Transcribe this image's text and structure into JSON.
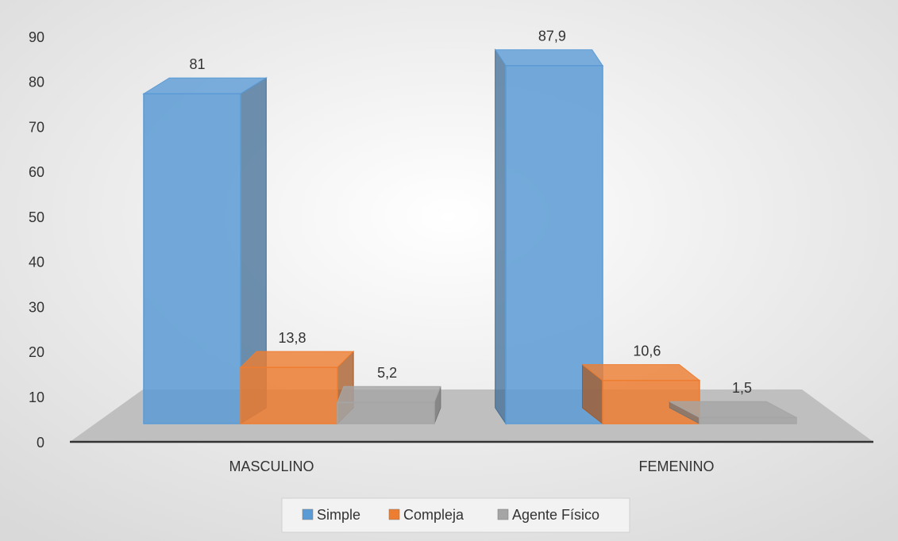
{
  "chart_data": {
    "type": "bar3d",
    "categories": [
      "MASCULINO",
      "FEMENINO"
    ],
    "series": [
      {
        "name": "Simple",
        "color": "#5b9bd5",
        "values": [
          81,
          87.9
        ],
        "value_labels": [
          "81",
          "87,9"
        ]
      },
      {
        "name": "Compleja",
        "color": "#ed7d31",
        "values": [
          13.8,
          10.6
        ],
        "value_labels": [
          "13,8",
          "10,6"
        ]
      },
      {
        "name": "Agente Físico",
        "color": "#a5a5a5",
        "values": [
          5.2,
          1.5
        ],
        "value_labels": [
          "5,2",
          "1,5"
        ]
      }
    ],
    "ylim": [
      0,
      90
    ],
    "yticks": [
      0,
      10,
      20,
      30,
      40,
      50,
      60,
      70,
      80,
      90
    ],
    "legend": "bottom"
  }
}
